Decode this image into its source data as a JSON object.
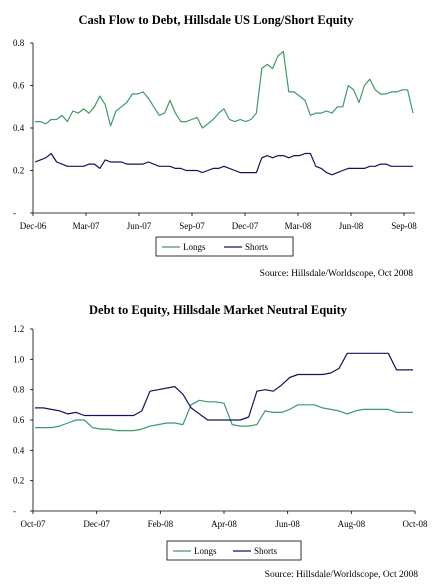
{
  "chart_data": [
    {
      "type": "line",
      "title": "Cash Flow to Debt, Hillsdale US Long/Short Equity",
      "xlabel": "",
      "ylabel": "",
      "x_ticks": [
        "Dec-06",
        "Mar-07",
        "Jun-07",
        "Sep-07",
        "Dec-07",
        "Mar-08",
        "Jun-08",
        "Sep-08"
      ],
      "y_ticks": [
        "-",
        "0.2",
        "0.4",
        "0.6",
        "0.8"
      ],
      "ylim": [
        0,
        0.8
      ],
      "grid": false,
      "legend_position": "bottom-center",
      "source": "Source: Hillsdale/Worldscope, Oct 2008",
      "series": [
        {
          "name": "Longs",
          "color": "#3e9b66",
          "values": [
            0.43,
            0.43,
            0.42,
            0.44,
            0.44,
            0.46,
            0.43,
            0.48,
            0.47,
            0.49,
            0.47,
            0.5,
            0.55,
            0.51,
            0.41,
            0.48,
            0.5,
            0.52,
            0.56,
            0.56,
            0.57,
            0.54,
            0.5,
            0.46,
            0.47,
            0.53,
            0.47,
            0.43,
            0.43,
            0.44,
            0.45,
            0.4,
            0.42,
            0.44,
            0.47,
            0.49,
            0.44,
            0.43,
            0.44,
            0.43,
            0.44,
            0.47,
            0.68,
            0.7,
            0.68,
            0.74,
            0.76,
            0.57,
            0.57,
            0.55,
            0.53,
            0.46,
            0.47,
            0.47,
            0.48,
            0.47,
            0.5,
            0.5,
            0.6,
            0.58,
            0.52,
            0.6,
            0.63,
            0.58,
            0.56,
            0.56,
            0.57,
            0.57,
            0.58,
            0.58,
            0.47
          ]
        },
        {
          "name": "Shorts",
          "color": "#14145a",
          "values": [
            0.24,
            0.25,
            0.26,
            0.28,
            0.24,
            0.23,
            0.22,
            0.22,
            0.22,
            0.22,
            0.23,
            0.23,
            0.21,
            0.25,
            0.24,
            0.24,
            0.24,
            0.23,
            0.23,
            0.23,
            0.23,
            0.24,
            0.23,
            0.22,
            0.22,
            0.22,
            0.21,
            0.21,
            0.2,
            0.2,
            0.2,
            0.19,
            0.2,
            0.21,
            0.21,
            0.22,
            0.21,
            0.2,
            0.19,
            0.19,
            0.19,
            0.19,
            0.26,
            0.27,
            0.26,
            0.27,
            0.27,
            0.26,
            0.27,
            0.27,
            0.28,
            0.28,
            0.22,
            0.21,
            0.19,
            0.18,
            0.19,
            0.2,
            0.21,
            0.21,
            0.21,
            0.21,
            0.22,
            0.22,
            0.23,
            0.23,
            0.22,
            0.22,
            0.22,
            0.22,
            0.22
          ]
        }
      ]
    },
    {
      "type": "line",
      "title": "Debt to Equity, Hillsdale Market Neutral Equity",
      "xlabel": "",
      "ylabel": "",
      "x_ticks": [
        "Oct-07",
        "Dec-07",
        "Feb-08",
        "Apr-08",
        "Jun-08",
        "Aug-08",
        "Oct-08"
      ],
      "y_ticks": [
        "-",
        "0.2",
        "0.4",
        "0.6",
        "0.8",
        "1.0",
        "1.2"
      ],
      "ylim": [
        0,
        1.2
      ],
      "grid": false,
      "legend_position": "bottom-center",
      "source": "Source: Hillsdale/Worldscope, Oct 2008",
      "series": [
        {
          "name": "Longs",
          "color": "#3e9b66",
          "values": [
            0.55,
            0.55,
            0.55,
            0.56,
            0.58,
            0.6,
            0.6,
            0.55,
            0.54,
            0.54,
            0.53,
            0.53,
            0.53,
            0.54,
            0.56,
            0.57,
            0.58,
            0.58,
            0.57,
            0.7,
            0.73,
            0.72,
            0.72,
            0.71,
            0.57,
            0.56,
            0.56,
            0.57,
            0.66,
            0.65,
            0.65,
            0.67,
            0.7,
            0.7,
            0.7,
            0.68,
            0.67,
            0.66,
            0.64,
            0.66,
            0.67,
            0.67,
            0.67,
            0.67,
            0.65,
            0.65,
            0.65
          ]
        },
        {
          "name": "Shorts",
          "color": "#14145a",
          "values": [
            0.68,
            0.68,
            0.67,
            0.66,
            0.64,
            0.65,
            0.63,
            0.63,
            0.63,
            0.63,
            0.63,
            0.63,
            0.63,
            0.66,
            0.79,
            0.8,
            0.81,
            0.82,
            0.77,
            0.68,
            0.64,
            0.6,
            0.6,
            0.6,
            0.6,
            0.6,
            0.62,
            0.79,
            0.8,
            0.79,
            0.83,
            0.88,
            0.9,
            0.9,
            0.9,
            0.9,
            0.91,
            0.94,
            1.04,
            1.04,
            1.04,
            1.04,
            1.04,
            1.04,
            0.93,
            0.93,
            0.93
          ]
        }
      ]
    }
  ]
}
